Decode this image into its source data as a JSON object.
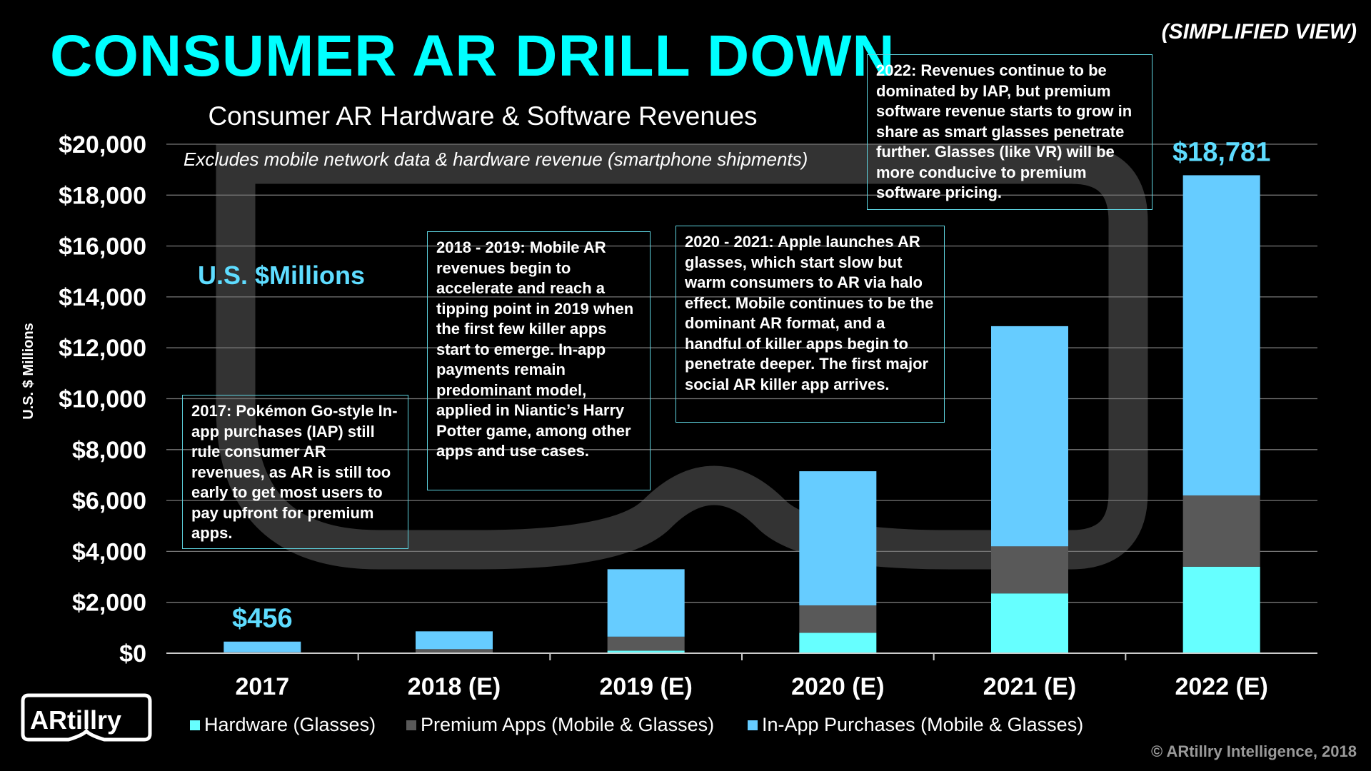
{
  "header": {
    "title": "CONSUMER AR DRILL DOWN",
    "view_label": "(SIMPLIFIED VIEW)"
  },
  "colors": {
    "hardware": "#66ffff",
    "premium": "#595959",
    "iap": "#66ccff",
    "title": "#00ffff",
    "note_border": "#5ed4e0"
  },
  "chart_data": {
    "type": "bar",
    "stacked": true,
    "title": "Consumer AR Hardware & Software Revenues",
    "subtitle": "Excludes mobile network data & hardware revenue (smartphone shipments)",
    "units_label": "U.S. $Millions",
    "ylabel": "U.S. $ Millions",
    "xlabel": "",
    "ylim": [
      0,
      20000
    ],
    "yticks": [
      0,
      2000,
      4000,
      6000,
      8000,
      10000,
      12000,
      14000,
      16000,
      18000,
      20000
    ],
    "ytick_labels": [
      "$0",
      "$2,000",
      "$4,000",
      "$6,000",
      "$8,000",
      "$10,000",
      "$12,000",
      "$14,000",
      "$16,000",
      "$18,000",
      "$20,000"
    ],
    "grid": true,
    "legend_position": "bottom",
    "categories": [
      "2017",
      "2018 (E)",
      "2019 (E)",
      "2020 (E)",
      "2021 (E)",
      "2022 (E)"
    ],
    "series": [
      {
        "name": "Hardware (Glasses)",
        "values": [
          0,
          0,
          100,
          800,
          2350,
          3400
        ]
      },
      {
        "name": "Premium Apps (Mobile & Glasses)",
        "values": [
          40,
          160,
          550,
          1080,
          1850,
          2800
        ]
      },
      {
        "name": "In-App Purchases (Mobile & Glasses)",
        "values": [
          416,
          700,
          2650,
          5270,
          8650,
          12581
        ]
      }
    ],
    "data_labels": [
      {
        "category": "2017",
        "text": "$456"
      },
      {
        "category": "2022 (E)",
        "text": "$18,781"
      }
    ]
  },
  "annotations": [
    {
      "text": "2017: Pokémon Go-style In-app purchases (IAP) still rule consumer AR revenues, as AR is still too early to get most users to pay upfront for premium apps."
    },
    {
      "text": "2018 - 2019: Mobile AR revenues begin to accelerate and reach a tipping point in 2019 when the first few killer apps start to emerge. In-app payments remain predominant model, applied in Niantic’s Harry Potter game, among other apps and use cases."
    },
    {
      "text": "2020 - 2021: Apple launches AR glasses, which start slow but warm consumers to AR via halo effect. Mobile continues to be the dominant AR format, and a handful of killer apps begin to penetrate deeper. The first major social AR killer app arrives."
    },
    {
      "text": "2022: Revenues continue to be dominated by IAP, but premium software revenue starts to grow in share as smart glasses penetrate further. Glasses (like VR) will be more conducive to premium software pricing."
    }
  ],
  "footer": {
    "logo_text": "ARtillry",
    "copyright": "© ARtillry Intelligence, 2018"
  }
}
